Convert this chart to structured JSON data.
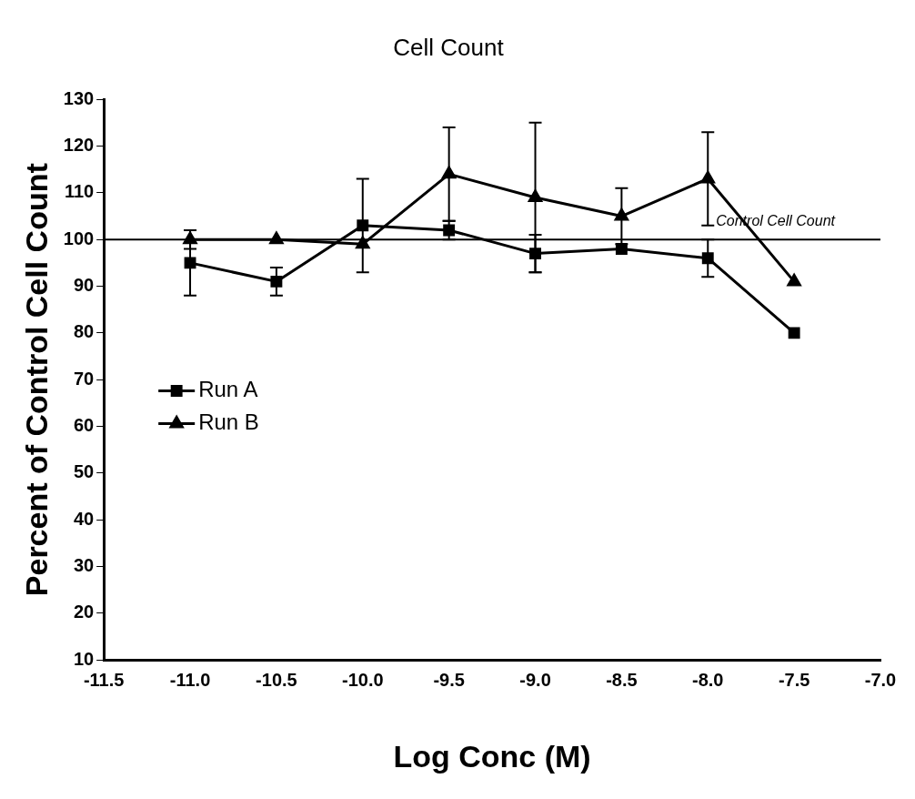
{
  "chart_data": {
    "type": "line",
    "title": "Cell Count",
    "xlabel": "Log Conc (M)",
    "ylabel": "Percent of Control Cell Count",
    "x": [
      -11,
      -10.5,
      -10,
      -9.5,
      -9,
      -8.5,
      -8,
      -7.5
    ],
    "series": [
      {
        "name": "Run A",
        "color": "#000000",
        "marker": "square",
        "values": [
          95,
          91,
          103,
          102,
          97,
          98,
          96,
          80
        ],
        "errors": [
          7,
          3,
          10,
          2,
          4,
          null,
          4,
          null
        ]
      },
      {
        "name": "Run B",
        "color": "#000000",
        "marker": "triangle",
        "values": [
          100,
          100,
          99,
          114,
          109,
          105,
          113,
          91
        ],
        "errors": [
          2,
          null,
          null,
          10,
          16,
          6,
          10,
          null
        ]
      }
    ],
    "xlim": [
      -11.5,
      -7
    ],
    "xticks": [
      -11.5,
      {
        "value": -11,
        "label": "-11.0"
      },
      -10.5,
      {
        "value": -10,
        "label": "-10.0"
      },
      -9.5,
      {
        "value": -9,
        "label": "-9.0"
      },
      -8.5,
      {
        "value": -8,
        "label": "-8.0"
      },
      -7.5,
      {
        "value": -7,
        "label": "-7.0"
      }
    ],
    "ylim": [
      10,
      130
    ],
    "yticks": [
      10,
      20,
      30,
      40,
      50,
      60,
      70,
      80,
      90,
      100,
      110,
      120,
      130
    ],
    "ref_lines": [
      {
        "axis": "y",
        "value": 100,
        "label": "Control Cell Count",
        "color": "#000000"
      }
    ],
    "grid": false,
    "legend": "left",
    "line_style": "solid"
  }
}
